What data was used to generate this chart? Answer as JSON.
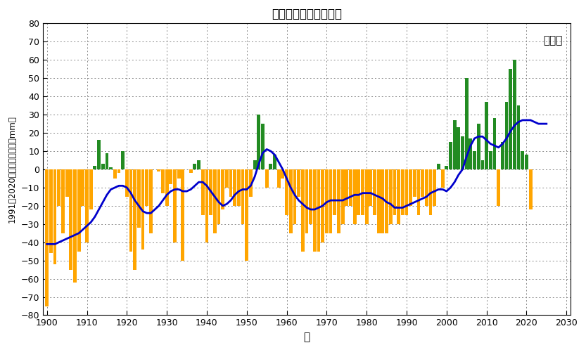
{
  "title": "北半球の年降水量偏差",
  "xlabel": "年",
  "ylabel": "1991－2020年平均からの差（mm）",
  "source_label": "気象庁",
  "ylim": [
    -80,
    80
  ],
  "xlim": [
    1899,
    2031
  ],
  "yticks": [
    -80,
    -70,
    -60,
    -50,
    -40,
    -30,
    -20,
    -10,
    0,
    10,
    20,
    30,
    40,
    50,
    60,
    70,
    80
  ],
  "xticks": [
    1900,
    1910,
    1920,
    1930,
    1940,
    1950,
    1960,
    1970,
    1980,
    1990,
    2000,
    2010,
    2020,
    2030
  ],
  "bar_color_positive": "#228B22",
  "bar_color_negative": "#FFA500",
  "line_color": "#0000CC",
  "line_width": 2.0,
  "background_color": "#FFFFFF",
  "grid_color": "#888888",
  "years": [
    1900,
    1901,
    1902,
    1903,
    1904,
    1905,
    1906,
    1907,
    1908,
    1909,
    1910,
    1911,
    1912,
    1913,
    1914,
    1915,
    1916,
    1917,
    1918,
    1919,
    1920,
    1921,
    1922,
    1923,
    1924,
    1925,
    1926,
    1927,
    1928,
    1929,
    1930,
    1931,
    1932,
    1933,
    1934,
    1935,
    1936,
    1937,
    1938,
    1939,
    1940,
    1941,
    1942,
    1943,
    1944,
    1945,
    1946,
    1947,
    1948,
    1949,
    1950,
    1951,
    1952,
    1953,
    1954,
    1955,
    1956,
    1957,
    1958,
    1959,
    1960,
    1961,
    1962,
    1963,
    1964,
    1965,
    1966,
    1967,
    1968,
    1969,
    1970,
    1971,
    1972,
    1973,
    1974,
    1975,
    1976,
    1977,
    1978,
    1979,
    1980,
    1981,
    1982,
    1983,
    1984,
    1985,
    1986,
    1987,
    1988,
    1989,
    1990,
    1991,
    1992,
    1993,
    1994,
    1995,
    1996,
    1997,
    1998,
    1999,
    2000,
    2001,
    2002,
    2003,
    2004,
    2005,
    2006,
    2007,
    2008,
    2009,
    2010,
    2011,
    2012,
    2013,
    2014,
    2015,
    2016,
    2017,
    2018,
    2019,
    2020,
    2021,
    2022,
    2023,
    2024,
    2025
  ],
  "values": [
    -75,
    -46,
    -52,
    -20,
    -35,
    -15,
    -55,
    -62,
    -45,
    -20,
    -40,
    -22,
    2,
    16,
    3,
    9,
    1,
    -5,
    -2,
    10,
    -15,
    -45,
    -55,
    -32,
    -44,
    -20,
    -35,
    0,
    -1,
    -13,
    -20,
    -8,
    -40,
    -5,
    -50,
    0,
    -2,
    3,
    5,
    -25,
    -40,
    -25,
    -35,
    -30,
    -22,
    -10,
    -15,
    -20,
    -20,
    -30,
    -50,
    -15,
    5,
    30,
    25,
    -10,
    3,
    8,
    -10,
    -5,
    -25,
    -35,
    -30,
    -15,
    -45,
    -35,
    -30,
    -45,
    -45,
    -40,
    -35,
    -35,
    -25,
    -35,
    -30,
    -20,
    -20,
    -30,
    -25,
    -25,
    -30,
    -20,
    -25,
    -35,
    -35,
    -35,
    -30,
    -25,
    -30,
    -25,
    -25,
    -20,
    -15,
    -25,
    -15,
    -20,
    -25,
    -20,
    3,
    -10,
    2,
    15,
    27,
    23,
    18,
    50,
    17,
    10,
    25,
    5,
    37,
    10,
    28,
    -20,
    15,
    37,
    55,
    60,
    35,
    10,
    8,
    -22,
    0,
    0,
    0,
    0
  ],
  "smooth_values": [
    -41,
    -41,
    -41,
    -40,
    -39,
    -38,
    -37,
    -36,
    -35,
    -33,
    -31,
    -29,
    -26,
    -22,
    -18,
    -14,
    -11,
    -10,
    -9,
    -9,
    -10,
    -13,
    -17,
    -20,
    -23,
    -24,
    -24,
    -22,
    -20,
    -17,
    -14,
    -12,
    -11,
    -11,
    -12,
    -12,
    -11,
    -9,
    -7,
    -7,
    -9,
    -12,
    -15,
    -18,
    -20,
    -19,
    -17,
    -14,
    -12,
    -11,
    -11,
    -9,
    -4,
    3,
    9,
    11,
    10,
    8,
    4,
    0,
    -5,
    -10,
    -14,
    -17,
    -19,
    -21,
    -22,
    -22,
    -21,
    -20,
    -18,
    -17,
    -17,
    -17,
    -17,
    -16,
    -15,
    -14,
    -14,
    -13,
    -13,
    -13,
    -14,
    -15,
    -16,
    -18,
    -19,
    -21,
    -21,
    -21,
    -20,
    -19,
    -18,
    -17,
    -16,
    -15,
    -13,
    -12,
    -11,
    -11,
    -12,
    -10,
    -7,
    -3,
    0,
    7,
    13,
    17,
    18,
    18,
    16,
    14,
    13,
    12,
    14,
    17,
    21,
    24,
    26,
    27,
    27,
    27,
    26,
    25,
    25,
    25
  ]
}
